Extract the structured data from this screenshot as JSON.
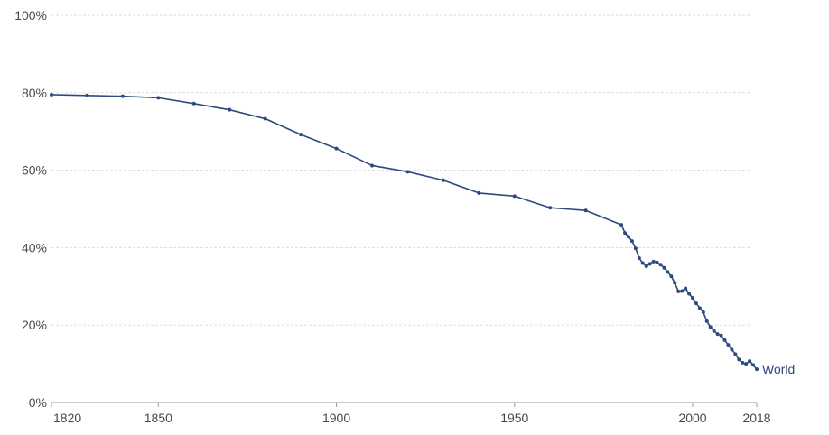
{
  "chart_data": {
    "type": "line",
    "title": "",
    "xlabel": "",
    "ylabel": "",
    "xlim": [
      1820,
      2018
    ],
    "ylim": [
      0,
      100
    ],
    "y_ticks": [
      {
        "value": 0,
        "label": "0%"
      },
      {
        "value": 20,
        "label": "20%"
      },
      {
        "value": 40,
        "label": "40%"
      },
      {
        "value": 60,
        "label": "60%"
      },
      {
        "value": 80,
        "label": "80%"
      },
      {
        "value": 100,
        "label": "100%"
      }
    ],
    "x_ticks": [
      {
        "value": 1820,
        "label": "1820"
      },
      {
        "value": 1850,
        "label": "1850"
      },
      {
        "value": 1900,
        "label": "1900"
      },
      {
        "value": 1950,
        "label": "1950"
      },
      {
        "value": 2000,
        "label": "2000"
      },
      {
        "value": 2018,
        "label": "2018"
      }
    ],
    "grid": true,
    "legend": "none",
    "series": [
      {
        "name": "World",
        "color": "#2b4a7e",
        "x": [
          1820,
          1830,
          1840,
          1850,
          1860,
          1870,
          1880,
          1890,
          1900,
          1910,
          1920,
          1930,
          1940,
          1950,
          1960,
          1970,
          1980,
          1981,
          1982,
          1983,
          1984,
          1985,
          1986,
          1987,
          1988,
          1989,
          1990,
          1991,
          1992,
          1993,
          1994,
          1995,
          1996,
          1997,
          1998,
          1999,
          2000,
          2001,
          2002,
          2003,
          2004,
          2005,
          2006,
          2007,
          2008,
          2009,
          2010,
          2011,
          2012,
          2013,
          2014,
          2015,
          2016,
          2017,
          2018
        ],
        "y": [
          79.5,
          79.3,
          79.1,
          78.7,
          77.2,
          75.6,
          73.3,
          69.2,
          65.6,
          61.2,
          59.6,
          57.4,
          54.1,
          53.3,
          50.3,
          49.6,
          45.9,
          43.8,
          42.8,
          41.7,
          39.8,
          37.3,
          36.0,
          35.2,
          35.8,
          36.4,
          36.2,
          35.6,
          34.8,
          33.7,
          32.6,
          30.9,
          28.7,
          28.8,
          29.5,
          28.1,
          27.0,
          25.6,
          24.4,
          23.3,
          21.0,
          19.5,
          18.5,
          17.7,
          17.3,
          16.1,
          14.9,
          13.7,
          12.5,
          11.1,
          10.3,
          10.0,
          10.7,
          9.7,
          8.6
        ]
      }
    ]
  }
}
